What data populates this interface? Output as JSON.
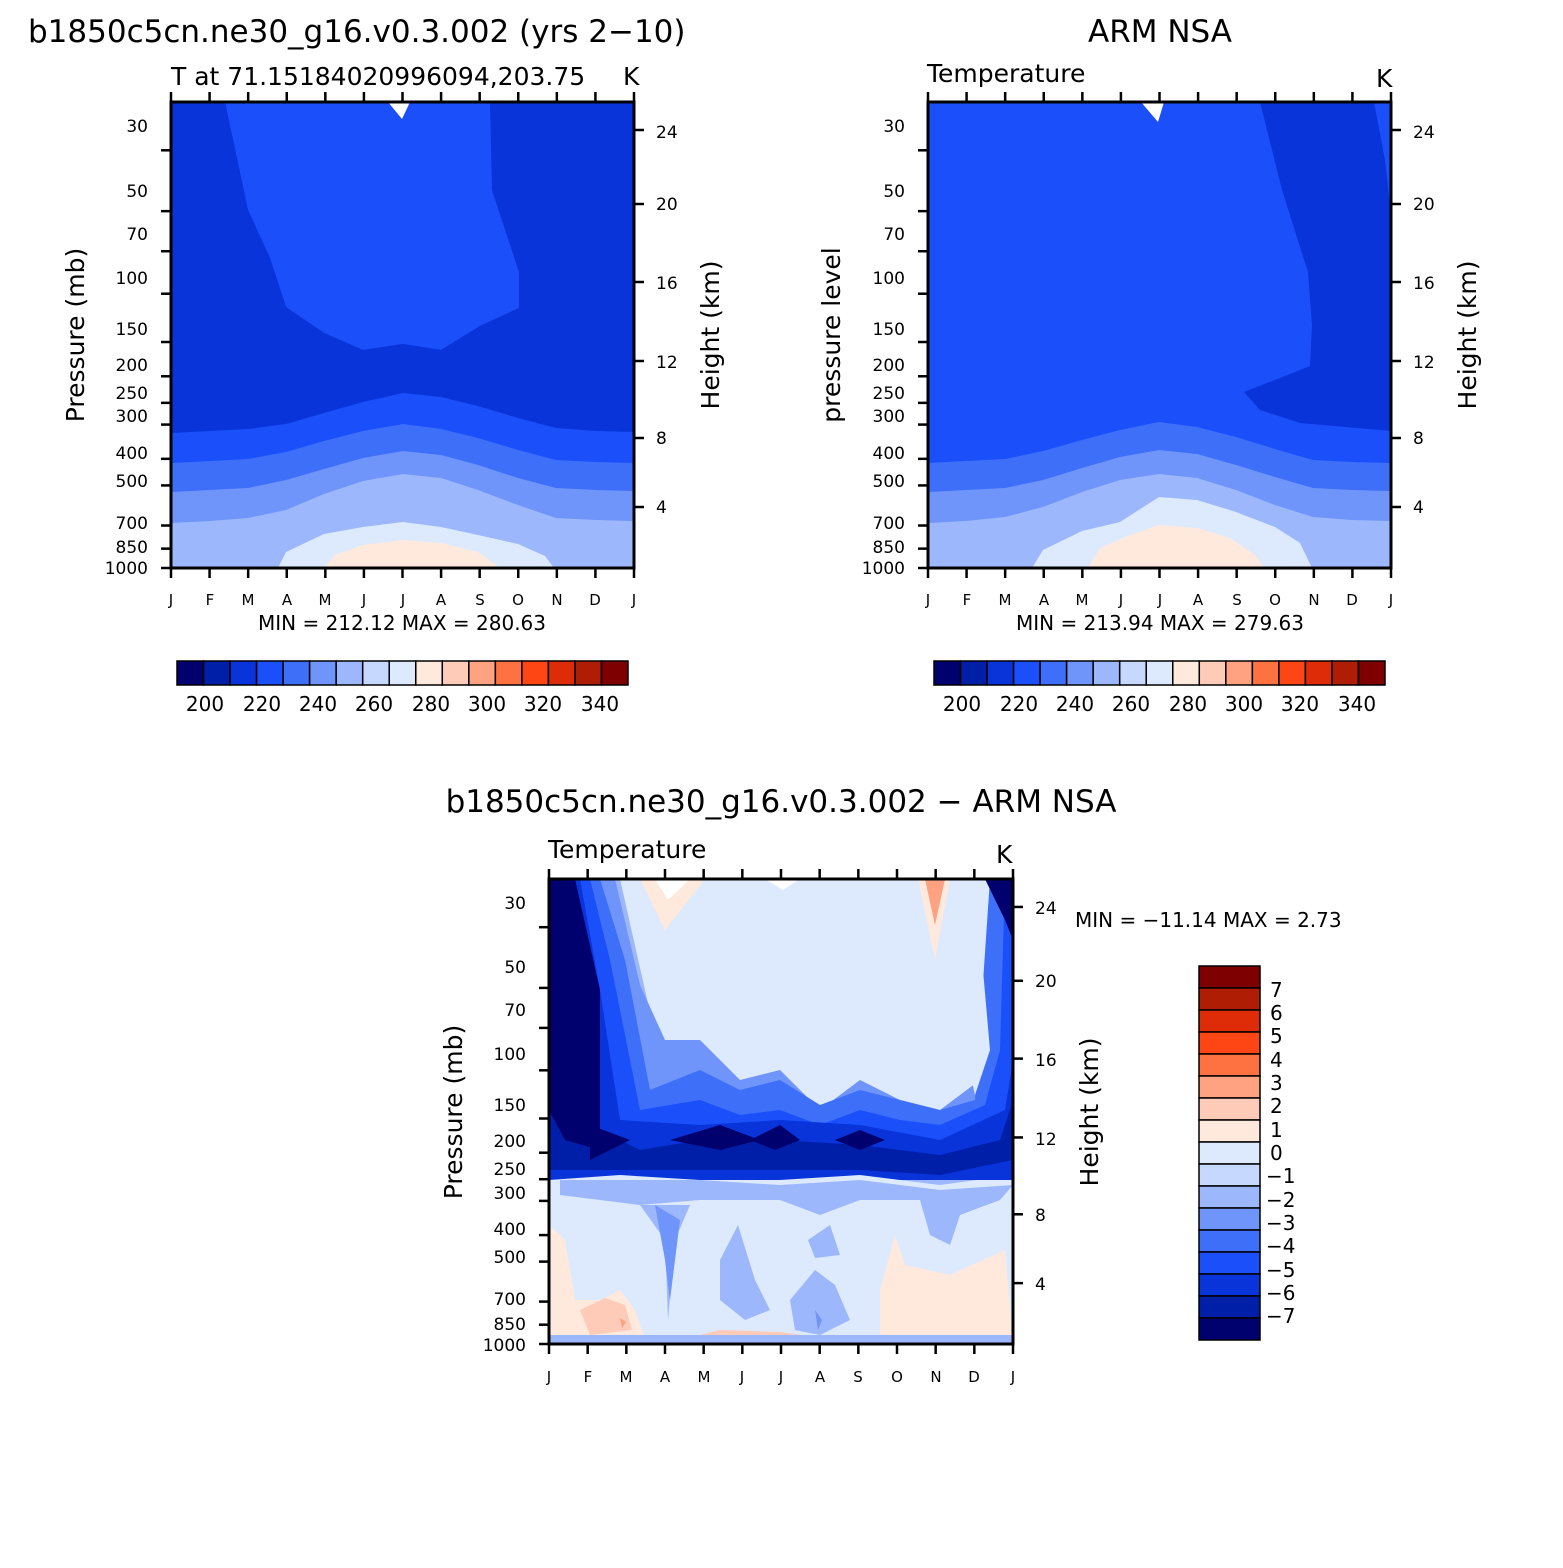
{
  "colors": {
    "temperature_scale": [
      "#00006e",
      "#001fa9",
      "#0834da",
      "#1b4ffa",
      "#3d6ff9",
      "#6f94fa",
      "#9cb7fc",
      "#c6d8fe",
      "#ddeafe",
      "#fee9dc",
      "#fecbb8",
      "#fea281",
      "#fe7242",
      "#fe4615",
      "#df2c08",
      "#b01d05",
      "#7e0000"
    ],
    "diff_scale": [
      "#7e0000",
      "#b01d05",
      "#df2c08",
      "#fe4615",
      "#fe7242",
      "#fea281",
      "#fecbb8",
      "#fee9dc",
      "#ddeafe",
      "#c6d8fe",
      "#9cb7fc",
      "#6f94fa",
      "#3d6ff9",
      "#1b4ffa",
      "#0834da",
      "#001fa9",
      "#00006e"
    ]
  },
  "chart_data": [
    {
      "id": "model",
      "type": "heatmap",
      "title": "b1850c5cn.ne30_g16.v0.3.002 (yrs 2−10)",
      "subtitle_left": "T at 71.15184020996094,203.75",
      "subtitle_right": "K",
      "ylabel": "Pressure (mb)",
      "ylabel_right": "Height (km)",
      "x_ticklabels": [
        "J",
        "F",
        "M",
        "A",
        "M",
        "J",
        "J",
        "A",
        "S",
        "O",
        "N",
        "D",
        "J"
      ],
      "y_ticklabels": [
        "30",
        "50",
        "70",
        "100",
        "150",
        "200",
        "250",
        "300",
        "400",
        "500",
        "700",
        "850",
        "1000"
      ],
      "y_right_ticklabels": [
        "24",
        "20",
        "16",
        "12",
        "8",
        "4"
      ],
      "minmax": "MIN = 212.12 MAX = 280.63",
      "colorbar_labels": [
        "200",
        "220",
        "240",
        "260",
        "280",
        "300",
        "320",
        "340"
      ]
    },
    {
      "id": "obs",
      "type": "heatmap",
      "title": "ARM NSA",
      "subtitle_left": "Temperature",
      "subtitle_right": "K",
      "ylabel": "pressure level",
      "ylabel_right": "Height (km)",
      "x_ticklabels": [
        "J",
        "F",
        "M",
        "A",
        "M",
        "J",
        "J",
        "A",
        "S",
        "O",
        "N",
        "D",
        "J"
      ],
      "y_ticklabels": [
        "30",
        "50",
        "70",
        "100",
        "150",
        "200",
        "250",
        "300",
        "400",
        "500",
        "700",
        "850",
        "1000"
      ],
      "y_right_ticklabels": [
        "24",
        "20",
        "16",
        "12",
        "8",
        "4"
      ],
      "minmax": "MIN = 213.94 MAX = 279.63",
      "colorbar_labels": [
        "200",
        "220",
        "240",
        "260",
        "280",
        "300",
        "320",
        "340"
      ]
    },
    {
      "id": "diff",
      "type": "heatmap",
      "title": "b1850c5cn.ne30_g16.v0.3.002 − ARM NSA",
      "subtitle_left": "Temperature",
      "subtitle_right": "K",
      "ylabel": "Pressure (mb)",
      "ylabel_right": "Height (km)",
      "x_ticklabels": [
        "J",
        "F",
        "M",
        "A",
        "M",
        "J",
        "J",
        "A",
        "S",
        "O",
        "N",
        "D",
        "J"
      ],
      "y_ticklabels": [
        "30",
        "50",
        "70",
        "100",
        "150",
        "200",
        "250",
        "300",
        "400",
        "500",
        "700",
        "850",
        "1000"
      ],
      "y_right_ticklabels": [
        "24",
        "20",
        "16",
        "12",
        "8",
        "4"
      ],
      "minmax": "MIN = −11.14 MAX =    2.73",
      "colorbar_labels": [
        "7",
        "6",
        "5",
        "4",
        "3",
        "2",
        "1",
        "0",
        "−1",
        "−2",
        "−3",
        "−4",
        "−5",
        "−6",
        "−7"
      ]
    }
  ]
}
